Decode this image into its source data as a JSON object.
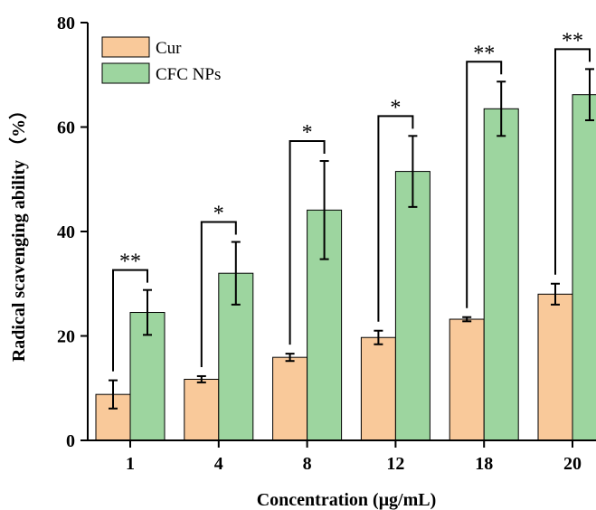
{
  "chart_data": {
    "type": "bar",
    "title": "",
    "xlabel": "Concentration (μg/mL)",
    "ylabel": "Radical scavenging ability （%）",
    "categories": [
      "1",
      "4",
      "8",
      "12",
      "18",
      "20"
    ],
    "ylim": [
      0,
      80
    ],
    "yticks": [
      0,
      20,
      40,
      60,
      80
    ],
    "grid": false,
    "legend_position": "top-left",
    "series": [
      {
        "name": "Cur",
        "color": "#F9C99A",
        "values": [
          8.8,
          11.7,
          15.9,
          19.7,
          23.2,
          28.0
        ],
        "errors": [
          2.7,
          0.6,
          0.7,
          1.3,
          0.4,
          2.0
        ]
      },
      {
        "name": "CFC NPs",
        "color": "#9DD59F",
        "values": [
          24.5,
          32.0,
          44.1,
          51.5,
          63.5,
          66.2
        ],
        "errors": [
          4.3,
          6.0,
          9.4,
          6.8,
          5.2,
          4.9
        ]
      }
    ],
    "significance": [
      "**",
      "*",
      "*",
      "*",
      "**",
      "**"
    ]
  }
}
